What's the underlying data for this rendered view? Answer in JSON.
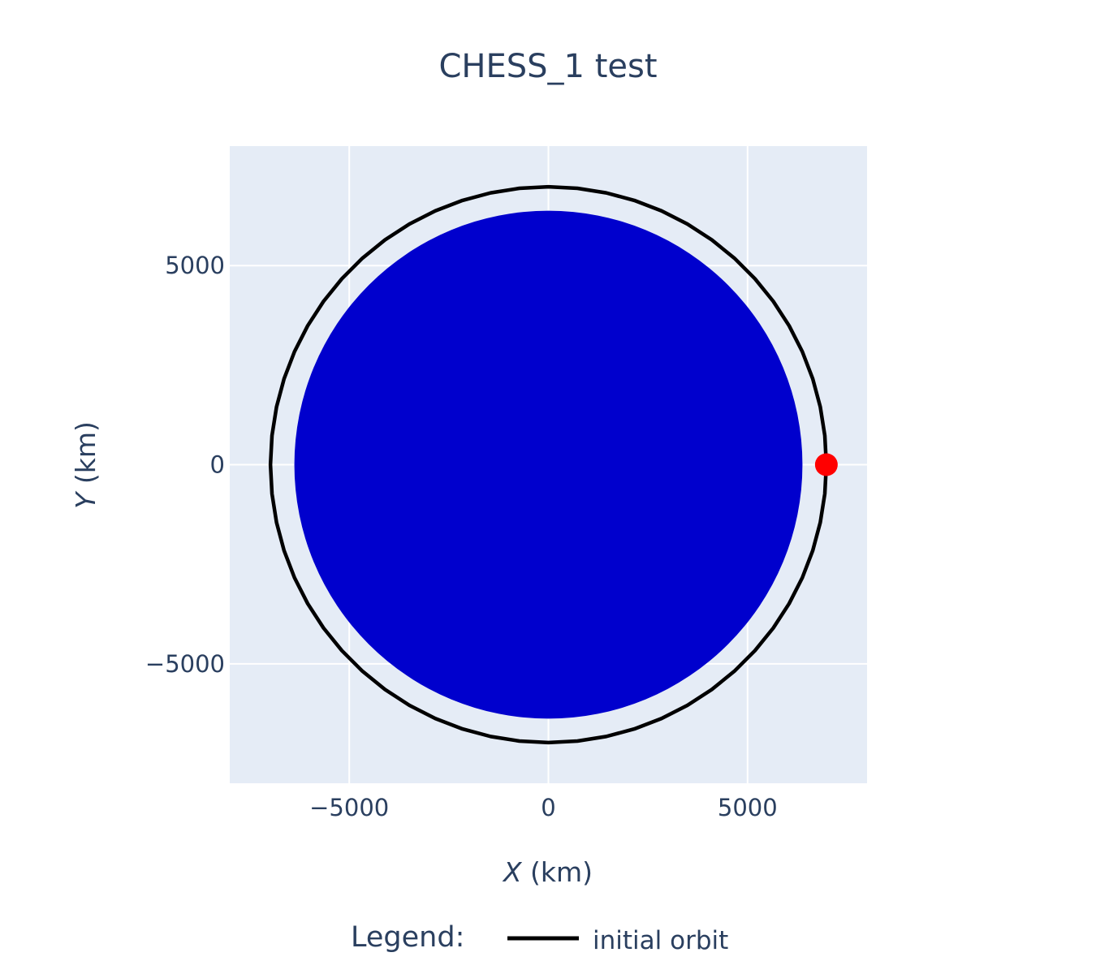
{
  "chart_data": {
    "type": "scatter",
    "title": "CHESS_1 test",
    "xaxis": {
      "label_var": "X",
      "label_unit": " (km)",
      "range": [
        -8000,
        8000
      ],
      "ticks": [
        -5000,
        0,
        5000
      ],
      "tick_labels": [
        "−5000",
        "0",
        "5000"
      ]
    },
    "yaxis": {
      "label_var": "Y",
      "label_unit": " (km)",
      "range": [
        -8000,
        8000
      ],
      "ticks": [
        -5000,
        0,
        5000
      ],
      "tick_labels": [
        "−5000",
        "0",
        "5000"
      ]
    },
    "grid": true,
    "plot_background": "#e5ecf6",
    "earth": {
      "radius": 6378,
      "color": "#0000cd"
    },
    "initial_orbit": {
      "name": "initial orbit",
      "radius": 6978,
      "color": "#000000",
      "segments": 60
    },
    "satellite": {
      "x": 6978,
      "y": 0,
      "color": "#ff0000"
    },
    "legend": {
      "title": "Legend:",
      "placement": "bottom-center",
      "orientation": "horizontal"
    }
  }
}
